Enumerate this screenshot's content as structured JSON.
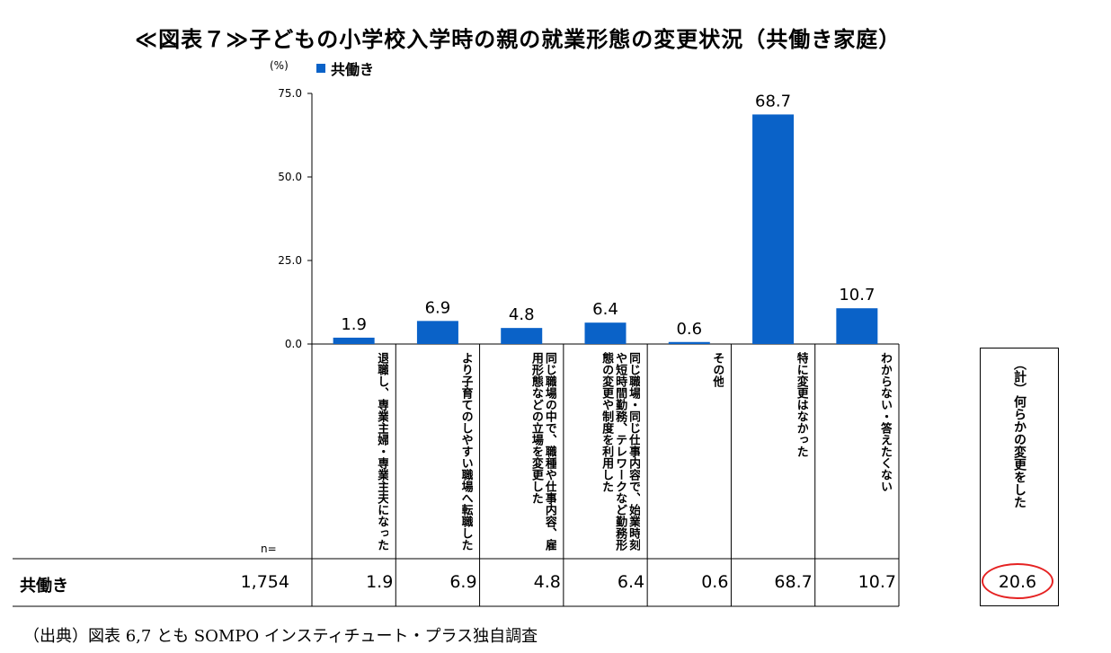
{
  "title": "≪図表７≫子どもの小学校入学時の親の就業形態の変更状況（共働き家庭）",
  "y_unit": "(%)",
  "legend_label": "共働き",
  "n_label": "n=",
  "colors": {
    "bar": "#0a62c8",
    "oval": "#e52222"
  },
  "chart_data": {
    "type": "bar",
    "ylim": [
      0,
      75
    ],
    "yticks": [
      "0.0",
      "25.0",
      "50.0",
      "75.0"
    ],
    "ytick_values": [
      0,
      25,
      50,
      75
    ],
    "series": [
      {
        "name": "共働き",
        "values": [
          1.9,
          6.9,
          4.8,
          6.4,
          0.6,
          68.7,
          10.7
        ]
      }
    ],
    "value_labels": [
      "1.9",
      "6.9",
      "4.8",
      "6.4",
      "0.6",
      "68.7",
      "10.7"
    ],
    "categories": [
      "退職し、専業主婦・専業主夫になった",
      "より子育てのしやすい職場へ転職した",
      "同じ職場の中で、職種や仕事内容、雇用形態などの立場を変更した",
      "同じ職場・同じ仕事内容で、始業時刻や短時間勤務、テレワークなど勤務形態の変更や制度を利用した",
      "その他",
      "特に変更はなかった",
      "わからない・答えたくない"
    ]
  },
  "table": {
    "row_label": "共働き",
    "n": "1,754",
    "values": [
      "1.9",
      "6.9",
      "4.8",
      "6.4",
      "0.6",
      "68.7",
      "10.7"
    ]
  },
  "total": {
    "label": "（計）何らかの変更をした",
    "value": "20.6"
  },
  "source": "（出典）図表 6,7 とも SOMPO インスティチュート・プラス独自調査"
}
